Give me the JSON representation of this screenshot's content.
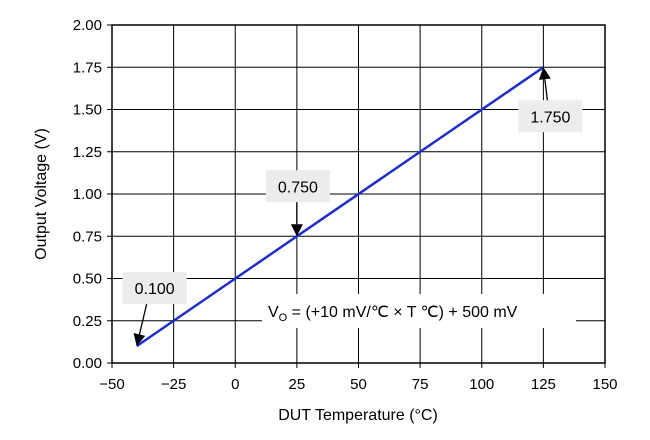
{
  "chart_data": {
    "type": "line",
    "title": "",
    "xlabel": "DUT Temperature (°C)",
    "ylabel": "Output Voltage (V)",
    "xlim": [
      -50,
      150
    ],
    "ylim": [
      0,
      2
    ],
    "xticks": [
      -50,
      -25,
      0,
      25,
      50,
      75,
      100,
      125,
      150
    ],
    "xtick_labels": [
      "−50",
      "−25",
      "0",
      "25",
      "50",
      "75",
      "100",
      "125",
      "150"
    ],
    "yticks": [
      0,
      0.25,
      0.5,
      0.75,
      1.0,
      1.25,
      1.5,
      1.75,
      2.0
    ],
    "ytick_labels": [
      "0.00",
      "0.25",
      "0.50",
      "0.75",
      "1.00",
      "1.25",
      "1.50",
      "1.75",
      "2.00"
    ],
    "grid": true,
    "series": [
      {
        "x": [
          -40,
          125
        ],
        "y": [
          0.1,
          1.75
        ],
        "color": "#1f2fc8"
      }
    ],
    "annotations": [
      {
        "text": "0.100",
        "x": -40,
        "y": 0.1
      },
      {
        "text": "0.750",
        "x": 25,
        "y": 0.75
      },
      {
        "text": "1.750",
        "x": 125,
        "y": 1.75
      }
    ],
    "formula": {
      "prefix": "V",
      "subscript": "O",
      "rest": " = (+10 mV/℃ × T ℃) + 500 mV"
    }
  }
}
